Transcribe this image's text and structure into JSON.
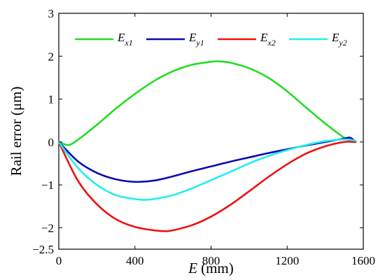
{
  "chart_data": {
    "type": "line",
    "title": "",
    "xlabel": {
      "var": "E",
      "unit": "(mm)"
    },
    "ylabel": "Rail error (μm)",
    "xlim": [
      0,
      1600
    ],
    "ylim": [
      -2.5,
      3
    ],
    "xticks": [
      "0",
      "400",
      "800",
      "1200",
      "1600"
    ],
    "xtick_values": [
      0,
      400,
      800,
      1200,
      1600
    ],
    "yticks": [
      "3",
      "2",
      "1",
      "0",
      "−1",
      "−2",
      "−2.5"
    ],
    "ytick_values": [
      3,
      2,
      1,
      0,
      -1,
      -2,
      -2.5
    ],
    "grid": false,
    "legend_position": "top",
    "series": [
      {
        "name": "E",
        "sub": "x1",
        "color": "#22dd22",
        "x": [
          0,
          50,
          100,
          200,
          300,
          400,
          500,
          600,
          700,
          800,
          840,
          900,
          1000,
          1100,
          1200,
          1300,
          1400,
          1500,
          1540
        ],
        "y": [
          0.0,
          -0.07,
          0.05,
          0.4,
          0.78,
          1.12,
          1.42,
          1.65,
          1.8,
          1.87,
          1.88,
          1.85,
          1.72,
          1.5,
          1.18,
          0.8,
          0.43,
          0.1,
          0.02
        ]
      },
      {
        "name": "E",
        "sub": "y1",
        "color": "#0a0ab4",
        "x": [
          0,
          100,
          200,
          300,
          400,
          500,
          600,
          700,
          800,
          900,
          1000,
          1100,
          1200,
          1300,
          1400,
          1500,
          1530,
          1550
        ],
        "y": [
          0.0,
          -0.45,
          -0.72,
          -0.87,
          -0.93,
          -0.9,
          -0.8,
          -0.68,
          -0.57,
          -0.46,
          -0.36,
          -0.26,
          -0.17,
          -0.08,
          0.0,
          0.08,
          0.1,
          0.04
        ]
      },
      {
        "name": "E",
        "sub": "x2",
        "color": "#ee1111",
        "x": [
          0,
          100,
          200,
          300,
          400,
          500,
          560,
          600,
          700,
          800,
          900,
          1000,
          1100,
          1200,
          1300,
          1400,
          1500,
          1560
        ],
        "y": [
          0.0,
          -0.9,
          -1.45,
          -1.8,
          -1.98,
          -2.06,
          -2.08,
          -2.06,
          -1.94,
          -1.74,
          -1.47,
          -1.15,
          -0.82,
          -0.52,
          -0.27,
          -0.1,
          0.0,
          0.0
        ]
      },
      {
        "name": "E",
        "sub": "y2",
        "color": "#22eeee",
        "x": [
          0,
          100,
          200,
          300,
          400,
          450,
          500,
          600,
          700,
          800,
          900,
          1000,
          1100,
          1200,
          1300,
          1400,
          1500,
          1560
        ],
        "y": [
          0.0,
          -0.6,
          -1.0,
          -1.24,
          -1.33,
          -1.35,
          -1.33,
          -1.24,
          -1.08,
          -0.89,
          -0.7,
          -0.5,
          -0.33,
          -0.19,
          -0.07,
          0.02,
          0.06,
          0.03
        ]
      }
    ]
  }
}
